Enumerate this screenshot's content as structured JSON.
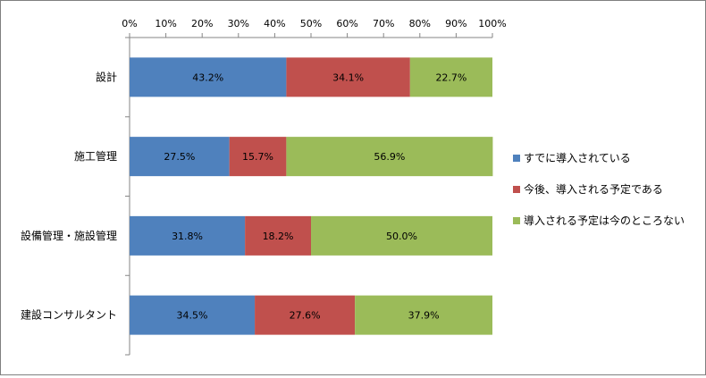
{
  "chart_data": {
    "type": "bar",
    "orientation": "horizontal",
    "stacked": "percent",
    "categories": [
      "設計",
      "施工管理",
      "設備管理・施設管理",
      "建設コンサルタント"
    ],
    "series": [
      {
        "name": "すでに導入されている",
        "values": [
          43.2,
          27.5,
          31.8,
          34.5
        ],
        "color": "#4f81bd"
      },
      {
        "name": "今後、導入される予定である",
        "values": [
          34.1,
          15.7,
          18.2,
          27.6
        ],
        "color": "#c0504d"
      },
      {
        "name": "導入される予定は今のところない",
        "values": [
          22.7,
          56.9,
          50.0,
          37.9
        ],
        "color": "#9bbb59"
      }
    ],
    "data_labels": [
      [
        "43.2%",
        "34.1%",
        "22.7%"
      ],
      [
        "27.5%",
        "15.7%",
        "56.9%"
      ],
      [
        "31.8%",
        "18.2%",
        "50.0%"
      ],
      [
        "34.5%",
        "27.6%",
        "37.9%"
      ]
    ],
    "xlim": [
      0,
      100
    ],
    "x_ticks": [
      "0%",
      "10%",
      "20%",
      "30%",
      "40%",
      "50%",
      "60%",
      "70%",
      "80%",
      "90%",
      "100%"
    ],
    "x_axis_position": "top",
    "grid": false,
    "legend_position": "right"
  }
}
